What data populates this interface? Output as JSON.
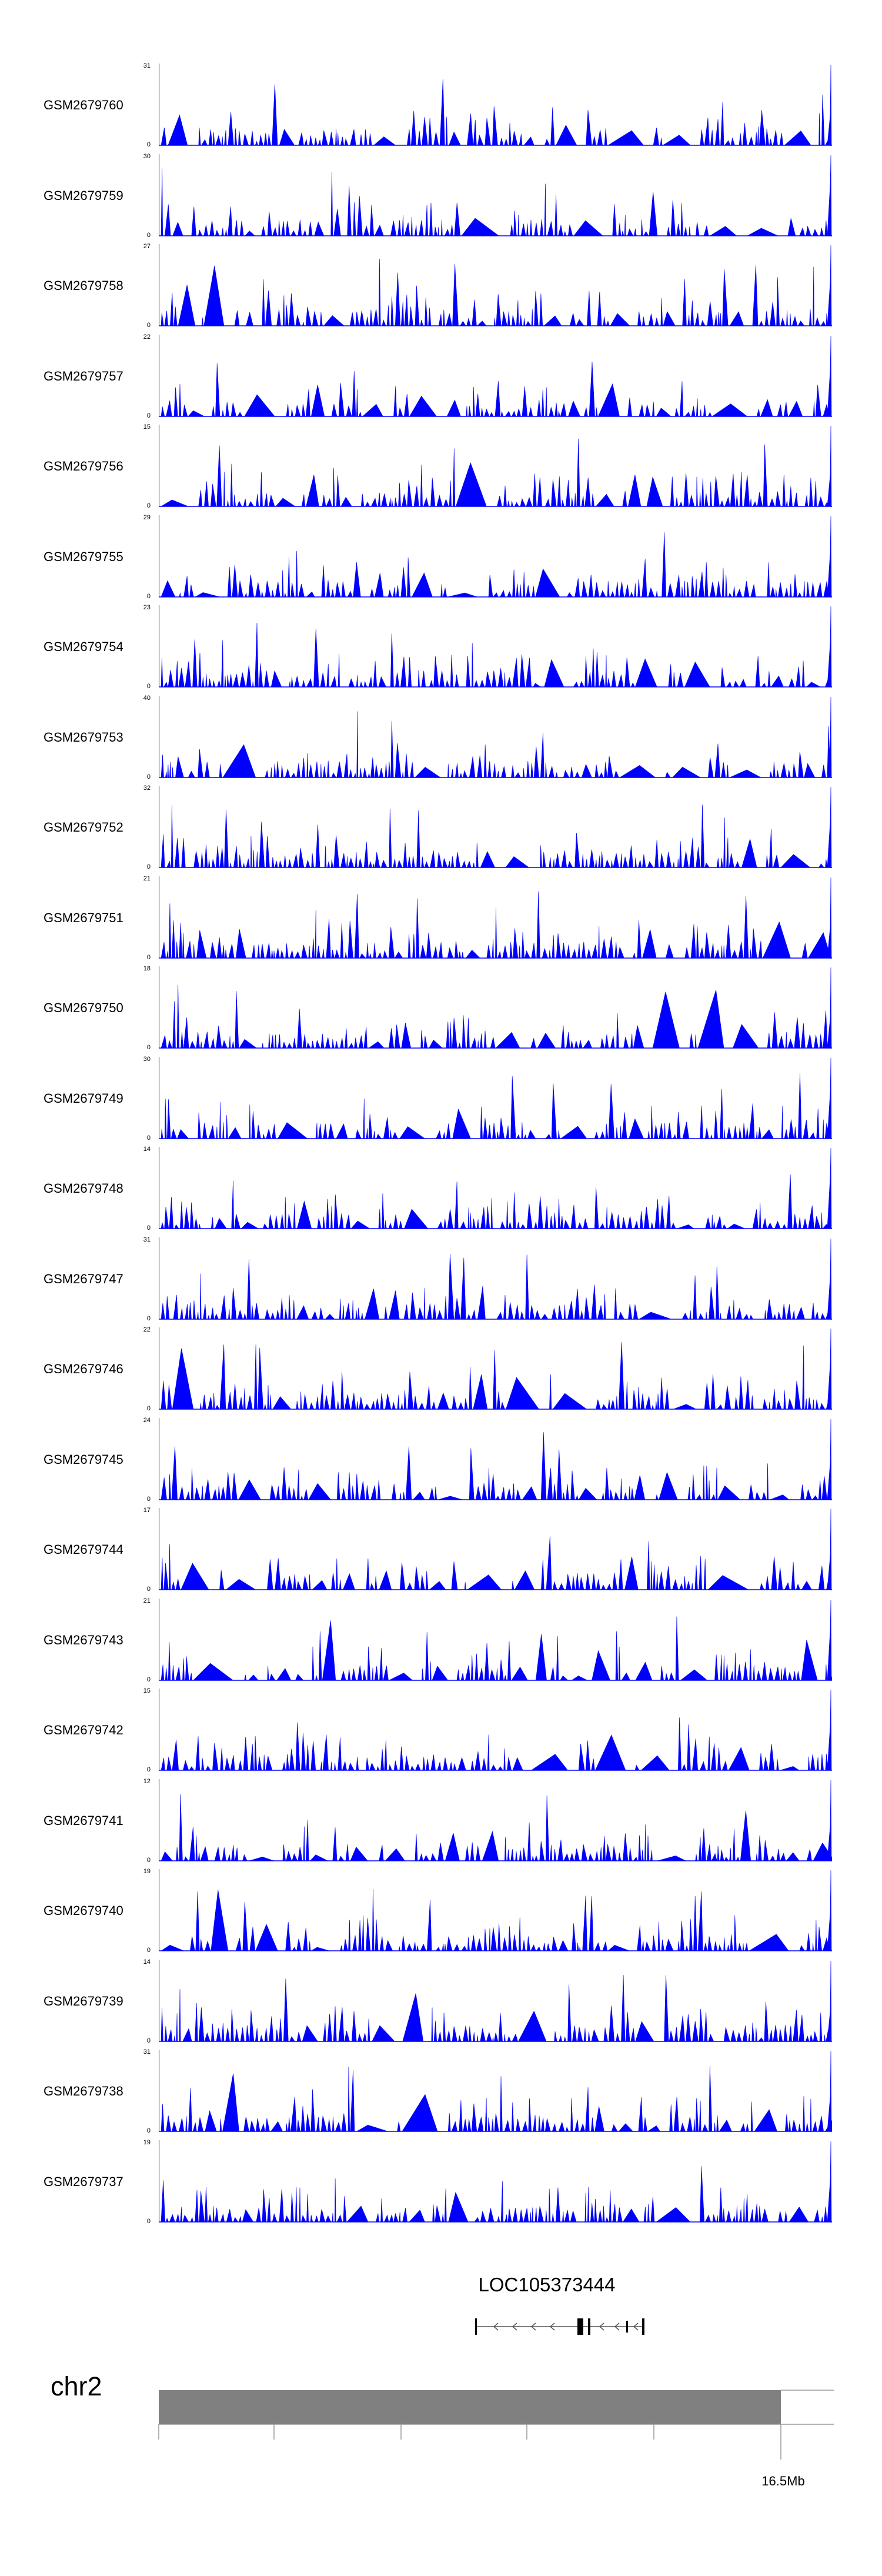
{
  "chart_data": {
    "type": "area",
    "color": "#0000ff",
    "tracks": [
      {
        "name": "GSM2679760",
        "ymin": "0",
        "ymax": "31"
      },
      {
        "name": "GSM2679759",
        "ymin": "0",
        "ymax": "30"
      },
      {
        "name": "GSM2679758",
        "ymin": "0",
        "ymax": "27"
      },
      {
        "name": "GSM2679757",
        "ymin": "0",
        "ymax": "22"
      },
      {
        "name": "GSM2679756",
        "ymin": "0",
        "ymax": "15"
      },
      {
        "name": "GSM2679755",
        "ymin": "0",
        "ymax": "29"
      },
      {
        "name": "GSM2679754",
        "ymin": "0",
        "ymax": "23"
      },
      {
        "name": "GSM2679753",
        "ymin": "0",
        "ymax": "40"
      },
      {
        "name": "GSM2679752",
        "ymin": "0",
        "ymax": "32"
      },
      {
        "name": "GSM2679751",
        "ymin": "0",
        "ymax": "21"
      },
      {
        "name": "GSM2679750",
        "ymin": "0",
        "ymax": "18"
      },
      {
        "name": "GSM2679749",
        "ymin": "0",
        "ymax": "30"
      },
      {
        "name": "GSM2679748",
        "ymin": "0",
        "ymax": "14"
      },
      {
        "name": "GSM2679747",
        "ymin": "0",
        "ymax": "31"
      },
      {
        "name": "GSM2679746",
        "ymin": "0",
        "ymax": "22"
      },
      {
        "name": "GSM2679745",
        "ymin": "0",
        "ymax": "24"
      },
      {
        "name": "GSM2679744",
        "ymin": "0",
        "ymax": "17"
      },
      {
        "name": "GSM2679743",
        "ymin": "0",
        "ymax": "21"
      },
      {
        "name": "GSM2679742",
        "ymin": "0",
        "ymax": "15"
      },
      {
        "name": "GSM2679741",
        "ymin": "0",
        "ymax": "12"
      },
      {
        "name": "GSM2679740",
        "ymin": "0",
        "ymax": "19"
      },
      {
        "name": "GSM2679739",
        "ymin": "0",
        "ymax": "14"
      },
      {
        "name": "GSM2679738",
        "ymin": "0",
        "ymax": "31"
      },
      {
        "name": "GSM2679737",
        "ymin": "0",
        "ymax": "19"
      }
    ],
    "gene": {
      "name": "LOC105373444",
      "strand": "-"
    },
    "chromosome": {
      "name": "chr2",
      "end_label": "16.5Mb"
    }
  }
}
